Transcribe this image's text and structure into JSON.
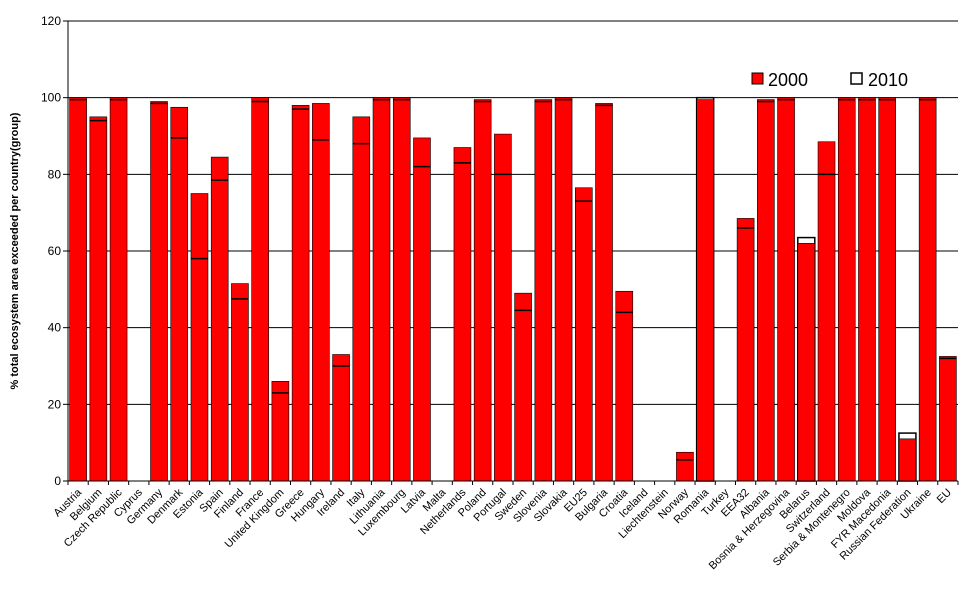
{
  "chart_data": {
    "type": "bar",
    "title": "",
    "xlabel": "",
    "ylabel": "% total ecosystem area exceeded per country(group)",
    "ylim": [
      0,
      120
    ],
    "yticks": [
      0,
      20,
      40,
      60,
      80,
      100,
      120
    ],
    "grid": "horizontal",
    "legend_position": "top-right",
    "colors": {
      "2000": "#ff0000",
      "2010": "#ffffff",
      "edge": "#000000",
      "gridline": "#000000"
    },
    "categories": [
      "Austria",
      "Belgium",
      "Czech Republic",
      "Cyprus",
      "Germany",
      "Denmark",
      "Estonia",
      "Spain",
      "Finland",
      "France",
      "United Kingdom",
      "Greece",
      "Hungary",
      "Ireland",
      "Italy",
      "Lithuania",
      "Luxembourg",
      "Latvia",
      "Malta",
      "Netherlands",
      "Poland",
      "Portugal",
      "Sweden",
      "Slovenia",
      "Slovakia",
      "EU25",
      "Bulgaria",
      "Croatia",
      "Iceland",
      "Liechtenstein",
      "Norway",
      "Romania",
      "Turkey",
      "EEA32",
      "Albania",
      "Bosnia & Herzegovina",
      "Belarus",
      "Switzerland",
      "Serbia & Montenegro",
      "Moldova",
      "FYR Macedonia",
      "Russian Federation",
      "Ukraine",
      "EU"
    ],
    "series": [
      {
        "name": "2000",
        "values": [
          100,
          95,
          100,
          0,
          99,
          97.5,
          75,
          84.5,
          51.5,
          100,
          26,
          98,
          98.5,
          33,
          95,
          100,
          100,
          89.5,
          0,
          87,
          99.5,
          90.5,
          49,
          99.5,
          100,
          76.5,
          98.5,
          49.5,
          0,
          0,
          7.5,
          99.5,
          0,
          68.5,
          99.5,
          100,
          62,
          88.5,
          100,
          100,
          100,
          11,
          100,
          32.5
        ]
      },
      {
        "name": "2010",
        "values": [
          99.5,
          94,
          99.5,
          0,
          98.5,
          89.5,
          58,
          78.5,
          47.5,
          99,
          23,
          97,
          89,
          30,
          88,
          99.5,
          99.5,
          82,
          0,
          83,
          99,
          80,
          44.5,
          99,
          99.5,
          73,
          98,
          44,
          0,
          0,
          5.5,
          100,
          0,
          66,
          99,
          99.5,
          63.5,
          80,
          99.5,
          99.5,
          99.5,
          12.5,
          99.5,
          32
        ]
      }
    ]
  }
}
